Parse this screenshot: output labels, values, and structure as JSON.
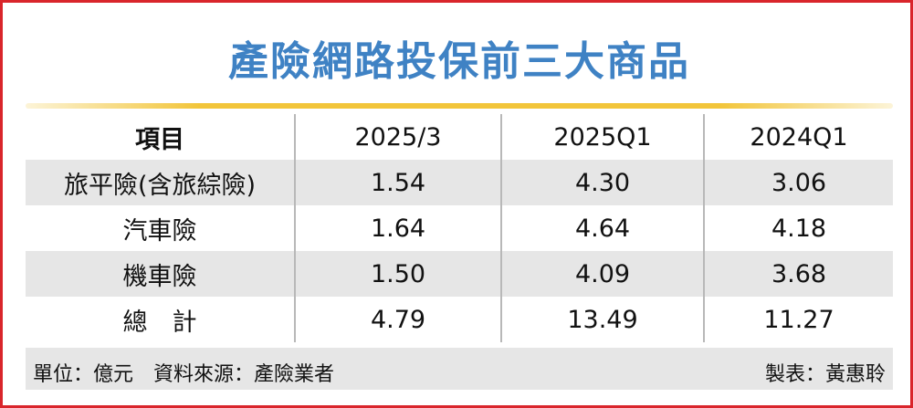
{
  "title": "產險網路投保前三大商品",
  "table": {
    "header": [
      "項目",
      "2025/3",
      "2025Q1",
      "2024Q1"
    ],
    "rows": [
      [
        "旅平險(含旅綜險)",
        "1.54",
        "4.30",
        "3.06"
      ],
      [
        "汽車險",
        "1.64",
        "4.64",
        "4.18"
      ],
      [
        "機車險",
        "1.50",
        "4.09",
        "3.68"
      ],
      [
        "總　計",
        "4.79",
        "13.49",
        "11.27"
      ]
    ]
  },
  "footer": {
    "note": "單位：億元　資料來源：產險業者",
    "credit": "製表：黃惠聆"
  }
}
